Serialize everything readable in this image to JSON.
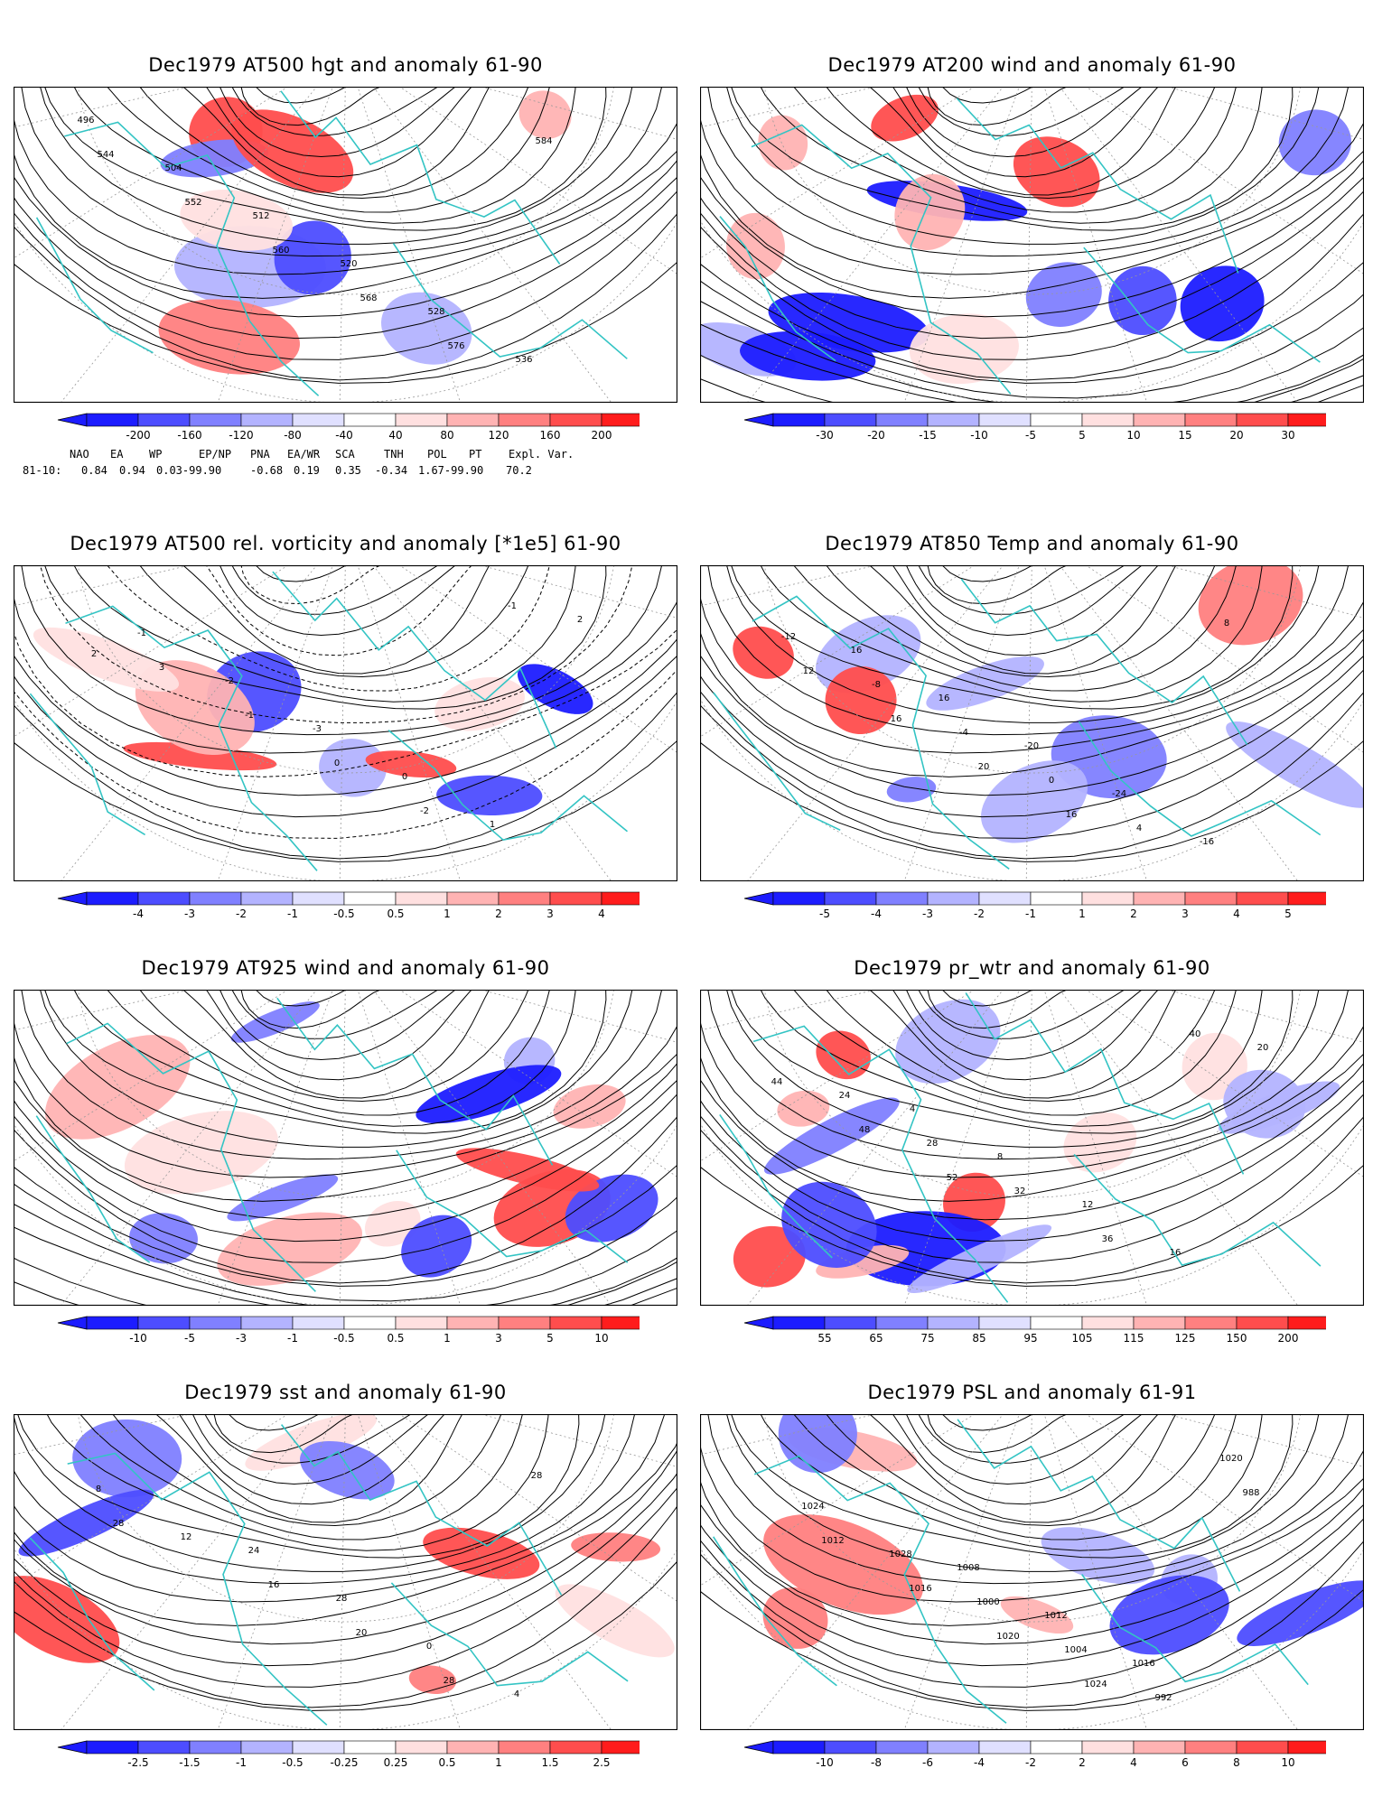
{
  "colors": {
    "land_outline": "#33c4c4",
    "contour": "#000000",
    "grid": "#999999",
    "neg_scale": [
      "#1c1cff",
      "#4d4dff",
      "#8080ff",
      "#b3b3ff",
      "#e0e0ff"
    ],
    "pos_scale": [
      "#ffe0e0",
      "#ffb3b3",
      "#ff8080",
      "#ff4d4d",
      "#ff1c1c"
    ]
  },
  "panels": [
    {
      "title": "Dec1979 AT500 hgt and anomaly 61-90",
      "colorbar_labels": [
        "-200",
        "-160",
        "-120",
        "-80",
        "-40",
        "40",
        "80",
        "120",
        "160",
        "200"
      ],
      "contour_labels": [
        "496",
        "504",
        "512",
        "520",
        "528",
        "536",
        "544",
        "552",
        "560",
        "568",
        "576",
        "584"
      ],
      "kind": "height"
    },
    {
      "title": "Dec1979 AT200 wind and anomaly 61-90",
      "colorbar_labels": [
        "-30",
        "-20",
        "-15",
        "-10",
        "-5",
        "5",
        "10",
        "15",
        "20",
        "30"
      ],
      "contour_labels": [],
      "kind": "wind"
    },
    {
      "title": "Dec1979 AT500 rel. vorticity and anomaly [*1e5] 61-90",
      "colorbar_labels": [
        "-4",
        "-3",
        "-2",
        "-1",
        "-0.5",
        "0.5",
        "1",
        "2",
        "3",
        "4"
      ],
      "contour_labels": [
        "-1",
        "-2",
        "-3",
        "0",
        "1",
        "2",
        "3",
        "-1",
        "0",
        "-2",
        "-1",
        "2"
      ],
      "kind": "vort"
    },
    {
      "title": "Dec1979 AT850 Temp and anomaly 61-90",
      "colorbar_labels": [
        "-5",
        "-4",
        "-3",
        "-2",
        "-1",
        "1",
        "2",
        "3",
        "4",
        "5"
      ],
      "contour_labels": [
        "16",
        "16",
        "-20",
        "-24",
        "-16",
        "-12",
        "-8",
        "-4",
        "0",
        "4",
        "8",
        "12",
        "16",
        "20",
        "16"
      ],
      "kind": "temp"
    },
    {
      "title": "Dec1979 AT925 wind and anomaly 61-90",
      "colorbar_labels": [
        "-10",
        "-5",
        "-3",
        "-1",
        "-0.5",
        "0.5",
        "1",
        "3",
        "5",
        "10"
      ],
      "contour_labels": [],
      "kind": "wind"
    },
    {
      "title": "Dec1979 pr_wtr and anomaly 61-90",
      "colorbar_labels": [
        "55",
        "65",
        "75",
        "85",
        "95",
        "105",
        "115",
        "125",
        "150",
        "200"
      ],
      "contour_labels": [
        "4",
        "8",
        "12",
        "16",
        "20",
        "24",
        "28",
        "32",
        "36",
        "40",
        "44",
        "48",
        "52"
      ],
      "kind": "prwtr"
    },
    {
      "title": "Dec1979 sst and anomaly 61-90",
      "colorbar_labels": [
        "-2.5",
        "-1.5",
        "-1",
        "-0.5",
        "-0.25",
        "0.25",
        "0.5",
        "1",
        "1.5",
        "2.5"
      ],
      "contour_labels": [
        "24",
        "28",
        "0",
        "4",
        "8",
        "12",
        "16",
        "20",
        "28",
        "28",
        "28"
      ],
      "kind": "sst"
    },
    {
      "title": "Dec1979 PSL and anomaly 61-91",
      "colorbar_labels": [
        "-10",
        "-8",
        "-6",
        "-4",
        "-2",
        "2",
        "4",
        "6",
        "8",
        "10"
      ],
      "contour_labels": [
        "1008",
        "1012",
        "1016",
        "1020",
        "1024",
        "1028",
        "1000",
        "1004",
        "992",
        "988",
        "1012",
        "1016",
        "1020",
        "1024"
      ],
      "kind": "psl"
    }
  ],
  "indices": {
    "header": [
      "NAO",
      "EA",
      "WP",
      "EP/NP",
      "PNA",
      "EA/WR",
      "SCA",
      "TNH",
      "POL",
      "PT",
      "Expl. Var."
    ],
    "row_label": "81-10:",
    "values": [
      "0.84",
      "0.94",
      "0.03-99.90",
      "-0.68",
      "0.19",
      "0.35",
      "-0.34",
      "1.67-99.90",
      "70.2"
    ]
  }
}
